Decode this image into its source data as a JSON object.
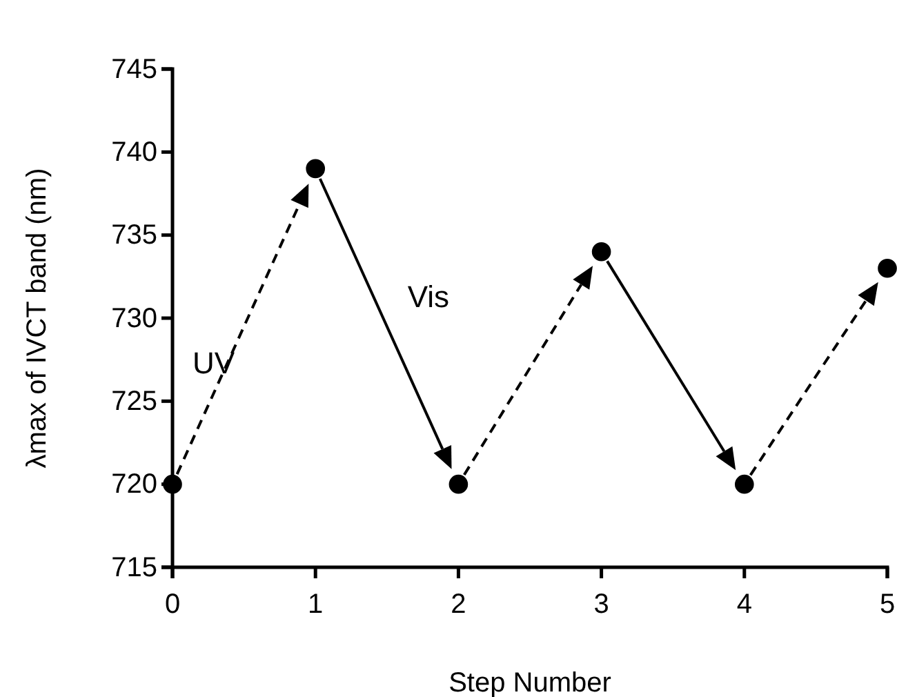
{
  "chart_data": {
    "type": "scatter",
    "xlabel": "Step Number",
    "ylabel": "λmax of IVCT band (nm)",
    "x": [
      0,
      1,
      2,
      3,
      4,
      5
    ],
    "series": [
      {
        "color": "#000000",
        "values": [
          720,
          739,
          720,
          734,
          720,
          733
        ]
      }
    ],
    "marker": "circle",
    "xlim": [
      0,
      5
    ],
    "xticks": [
      0,
      1,
      2,
      3,
      4,
      5
    ],
    "ylim": [
      715,
      745
    ],
    "yticks": [
      715,
      720,
      725,
      730,
      735,
      740,
      745
    ],
    "grid": false,
    "annotations": [
      "UV",
      "Vis"
    ]
  }
}
